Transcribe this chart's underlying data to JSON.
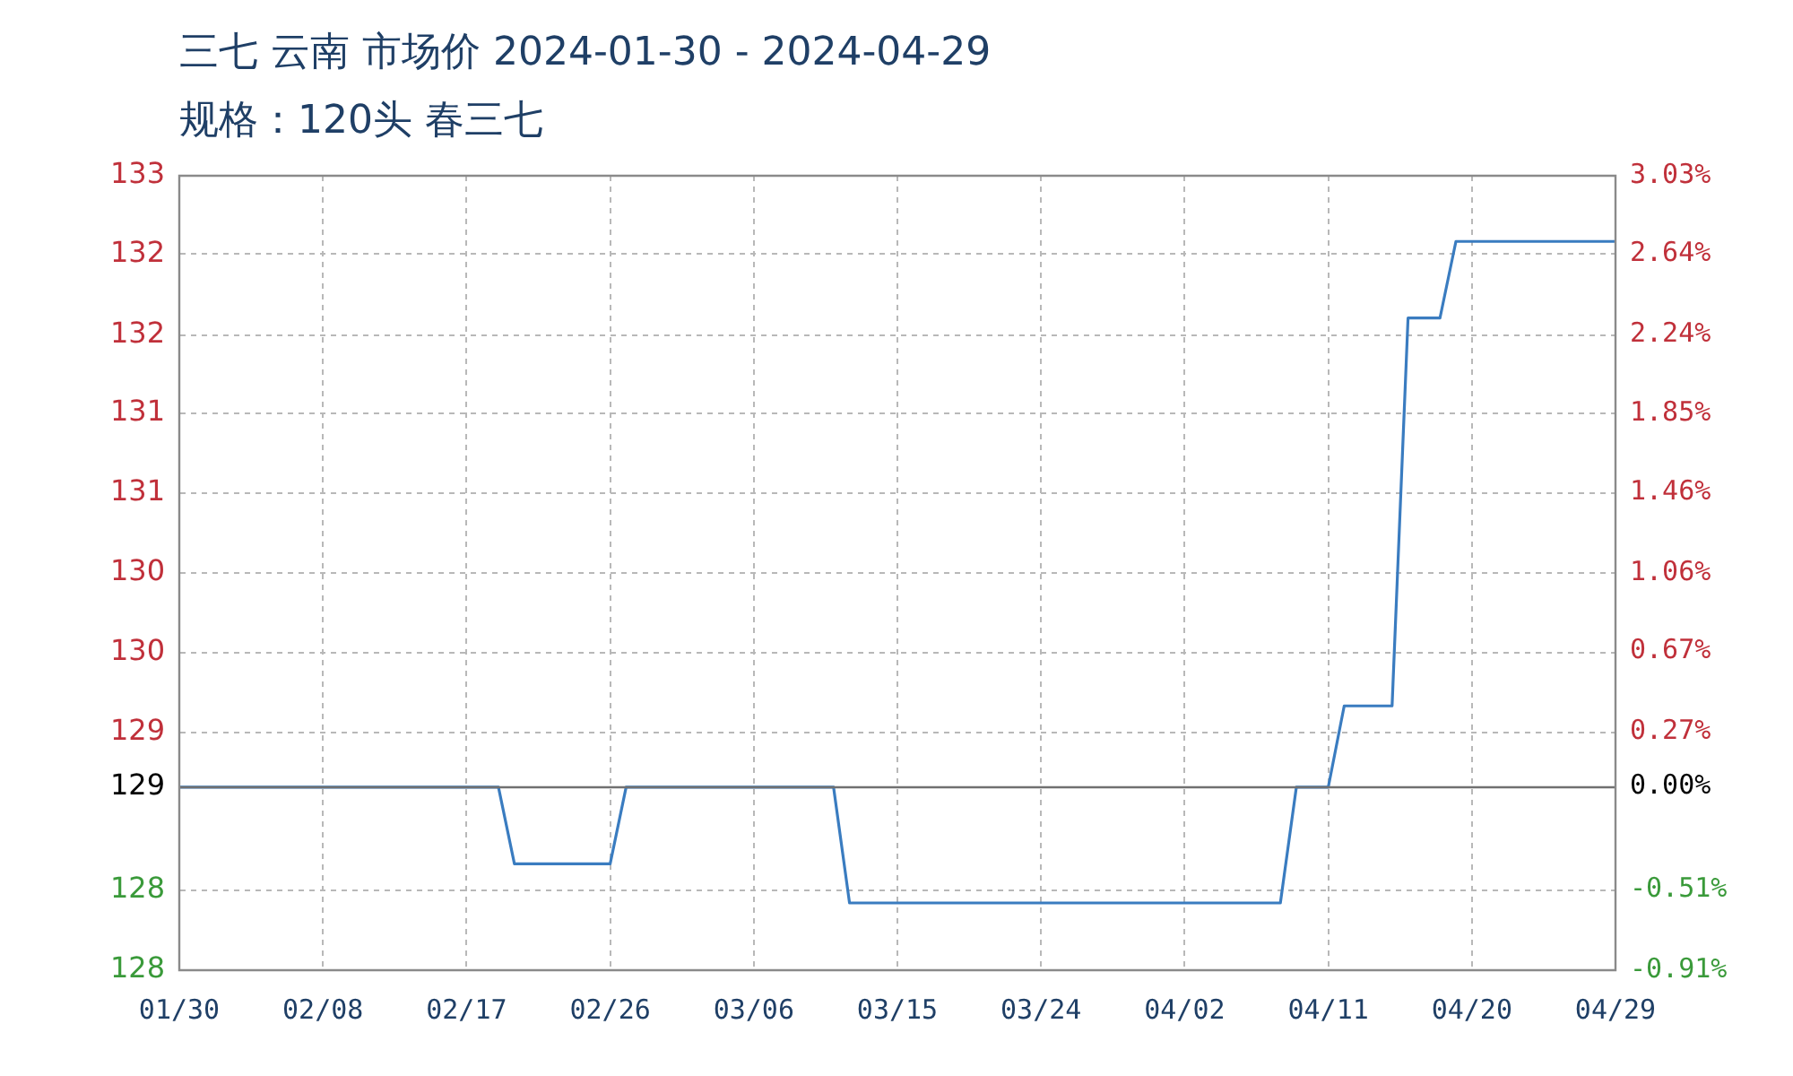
{
  "chart_data": {
    "type": "line",
    "title": "三七 云南 市场价 2024-01-30 - 2024-04-29",
    "subtitle": "规格：120头 春三七",
    "x": [
      "2024-01-30",
      "2024-02-19",
      "2024-02-20",
      "2024-02-26",
      "2024-02-27",
      "2024-03-11",
      "2024-03-12",
      "2024-04-08",
      "2024-04-09",
      "2024-04-11",
      "2024-04-12",
      "2024-04-15",
      "2024-04-16",
      "2024-04-18",
      "2024-04-19",
      "2024-04-29"
    ],
    "series": [
      {
        "color": "#3a7cc0",
        "values": [
          129,
          129,
          128.51,
          128.51,
          129,
          129,
          128.26,
          128.26,
          129,
          129,
          129.52,
          129.52,
          132.0,
          132.0,
          132.49,
          132.49
        ]
      }
    ],
    "xlim": [
      "2024-01-30",
      "2024-04-29"
    ],
    "xticks": [
      {
        "value": "2024-01-30",
        "label": "01/30"
      },
      {
        "value": "2024-02-08",
        "label": "02/08"
      },
      {
        "value": "2024-02-17",
        "label": "02/17"
      },
      {
        "value": "2024-02-26",
        "label": "02/26"
      },
      {
        "value": "2024-03-06",
        "label": "03/06"
      },
      {
        "value": "2024-03-15",
        "label": "03/15"
      },
      {
        "value": "2024-03-24",
        "label": "03/24"
      },
      {
        "value": "2024-04-02",
        "label": "04/02"
      },
      {
        "value": "2024-04-11",
        "label": "04/11"
      },
      {
        "value": "2024-04-20",
        "label": "04/20"
      },
      {
        "value": "2024-04-29",
        "label": "04/29"
      }
    ],
    "ylim": [
      127.83,
      132.91
    ],
    "yticks": [
      {
        "value": 132.91,
        "label": "133"
      },
      {
        "value": 132.41,
        "label": "132"
      },
      {
        "value": 131.89,
        "label": "132"
      },
      {
        "value": 131.39,
        "label": "131"
      },
      {
        "value": 130.88,
        "label": "131"
      },
      {
        "value": 130.37,
        "label": "130"
      },
      {
        "value": 129.86,
        "label": "130"
      },
      {
        "value": 129.35,
        "label": "129"
      },
      {
        "value": 129,
        "label": "129"
      },
      {
        "value": 128.34,
        "label": "128"
      },
      {
        "value": 127.83,
        "label": "128"
      }
    ],
    "y2lim": [
      -0.91,
      3.03
    ],
    "y2ticks": [
      {
        "value": 3.03,
        "label": "3.03%"
      },
      {
        "value": 2.64,
        "label": "2.64%"
      },
      {
        "value": 2.24,
        "label": "2.24%"
      },
      {
        "value": 1.85,
        "label": "1.85%"
      },
      {
        "value": 1.46,
        "label": "1.46%"
      },
      {
        "value": 1.06,
        "label": "1.06%"
      },
      {
        "value": 0.67,
        "label": "0.67%"
      },
      {
        "value": 0.27,
        "label": "0.27%"
      },
      {
        "value": 0,
        "label": "0.00%"
      },
      {
        "value": -0.51,
        "label": "-0.51%"
      },
      {
        "value": -0.91,
        "label": "-0.91%"
      }
    ],
    "ref_lines": [
      {
        "axis": "y",
        "value": 129,
        "color": "#707070"
      }
    ],
    "grid": true,
    "legend": false,
    "marker": "none",
    "line_style": "solid"
  }
}
